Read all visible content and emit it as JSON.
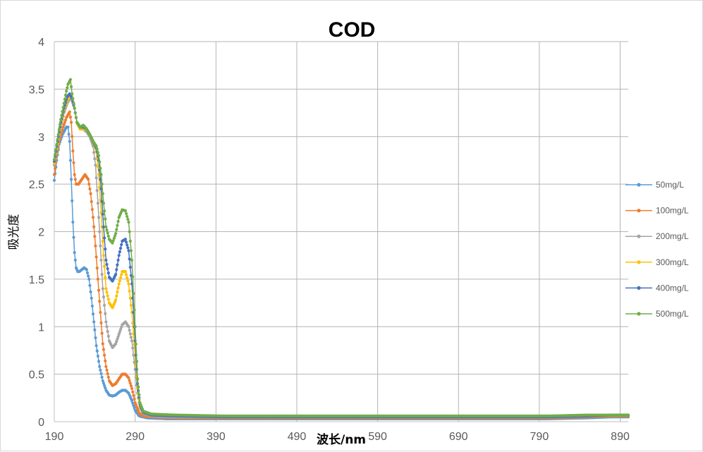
{
  "chart_data": {
    "type": "line",
    "title": "COD",
    "xlabel": "波长/nm",
    "ylabel": "吸光度",
    "xlim": [
      190,
      900
    ],
    "ylim": [
      0,
      4
    ],
    "xticks": [
      190,
      290,
      390,
      490,
      590,
      690,
      790,
      890
    ],
    "yticks": [
      0,
      0.5,
      1,
      1.5,
      2,
      2.5,
      3,
      3.5,
      4
    ],
    "grid": true,
    "legend_position": "right",
    "markers": true,
    "series": [
      {
        "name": "50mg/L",
        "color": "#5b9bd5",
        "points": [
          [
            190,
            2.54
          ],
          [
            193,
            2.75
          ],
          [
            196,
            2.92
          ],
          [
            200,
            3.02
          ],
          [
            205,
            3.1
          ],
          [
            207,
            3.1
          ],
          [
            209,
            2.95
          ],
          [
            211,
            2.55
          ],
          [
            213,
            2.1
          ],
          [
            215,
            1.78
          ],
          [
            217,
            1.62
          ],
          [
            219,
            1.58
          ],
          [
            221,
            1.58
          ],
          [
            224,
            1.6
          ],
          [
            227,
            1.62
          ],
          [
            230,
            1.6
          ],
          [
            233,
            1.5
          ],
          [
            236,
            1.3
          ],
          [
            239,
            1.05
          ],
          [
            242,
            0.8
          ],
          [
            246,
            0.58
          ],
          [
            250,
            0.43
          ],
          [
            254,
            0.33
          ],
          [
            258,
            0.28
          ],
          [
            262,
            0.27
          ],
          [
            266,
            0.28
          ],
          [
            270,
            0.31
          ],
          [
            274,
            0.33
          ],
          [
            278,
            0.33
          ],
          [
            282,
            0.3
          ],
          [
            286,
            0.22
          ],
          [
            290,
            0.12
          ],
          [
            295,
            0.06
          ],
          [
            305,
            0.04
          ],
          [
            330,
            0.03
          ],
          [
            400,
            0.03
          ],
          [
            500,
            0.03
          ],
          [
            600,
            0.03
          ],
          [
            700,
            0.03
          ],
          [
            800,
            0.03
          ],
          [
            850,
            0.04
          ],
          [
            880,
            0.05
          ],
          [
            900,
            0.05
          ]
        ]
      },
      {
        "name": "100mg/L",
        "color": "#ed7d31",
        "points": [
          [
            190,
            2.6
          ],
          [
            193,
            2.8
          ],
          [
            197,
            2.98
          ],
          [
            201,
            3.1
          ],
          [
            205,
            3.2
          ],
          [
            209,
            3.26
          ],
          [
            211,
            3.15
          ],
          [
            213,
            2.85
          ],
          [
            215,
            2.6
          ],
          [
            217,
            2.5
          ],
          [
            220,
            2.5
          ],
          [
            224,
            2.55
          ],
          [
            228,
            2.6
          ],
          [
            232,
            2.55
          ],
          [
            235,
            2.4
          ],
          [
            238,
            2.15
          ],
          [
            241,
            1.85
          ],
          [
            244,
            1.5
          ],
          [
            247,
            1.15
          ],
          [
            250,
            0.82
          ],
          [
            254,
            0.58
          ],
          [
            258,
            0.43
          ],
          [
            262,
            0.38
          ],
          [
            266,
            0.4
          ],
          [
            270,
            0.45
          ],
          [
            274,
            0.5
          ],
          [
            278,
            0.5
          ],
          [
            282,
            0.46
          ],
          [
            286,
            0.35
          ],
          [
            290,
            0.2
          ],
          [
            295,
            0.09
          ],
          [
            300,
            0.06
          ],
          [
            310,
            0.05
          ],
          [
            340,
            0.04
          ],
          [
            400,
            0.04
          ],
          [
            500,
            0.04
          ],
          [
            600,
            0.04
          ],
          [
            700,
            0.04
          ],
          [
            800,
            0.04
          ],
          [
            850,
            0.05
          ],
          [
            880,
            0.06
          ],
          [
            900,
            0.06
          ]
        ]
      },
      {
        "name": "200mg/L",
        "color": "#a5a5a5",
        "points": [
          [
            190,
            2.7
          ],
          [
            194,
            2.9
          ],
          [
            198,
            3.1
          ],
          [
            202,
            3.25
          ],
          [
            206,
            3.35
          ],
          [
            209,
            3.4
          ],
          [
            212,
            3.38
          ],
          [
            215,
            3.3
          ],
          [
            218,
            3.15
          ],
          [
            222,
            3.08
          ],
          [
            226,
            3.08
          ],
          [
            230,
            3.05
          ],
          [
            234,
            3.0
          ],
          [
            238,
            2.9
          ],
          [
            241,
            2.7
          ],
          [
            244,
            2.3
          ],
          [
            247,
            1.85
          ],
          [
            250,
            1.4
          ],
          [
            254,
            1.05
          ],
          [
            258,
            0.85
          ],
          [
            262,
            0.78
          ],
          [
            266,
            0.82
          ],
          [
            270,
            0.92
          ],
          [
            274,
            1.02
          ],
          [
            278,
            1.05
          ],
          [
            282,
            1.0
          ],
          [
            286,
            0.85
          ],
          [
            290,
            0.55
          ],
          [
            293,
            0.3
          ],
          [
            296,
            0.15
          ],
          [
            300,
            0.09
          ],
          [
            310,
            0.06
          ],
          [
            340,
            0.05
          ],
          [
            400,
            0.05
          ],
          [
            500,
            0.05
          ],
          [
            600,
            0.05
          ],
          [
            700,
            0.05
          ],
          [
            800,
            0.05
          ],
          [
            850,
            0.06
          ],
          [
            880,
            0.07
          ],
          [
            900,
            0.07
          ]
        ]
      },
      {
        "name": "300mg/L",
        "color": "#ffc000",
        "points": [
          [
            190,
            2.72
          ],
          [
            194,
            2.92
          ],
          [
            198,
            3.12
          ],
          [
            202,
            3.28
          ],
          [
            206,
            3.38
          ],
          [
            209,
            3.42
          ],
          [
            212,
            3.4
          ],
          [
            215,
            3.3
          ],
          [
            218,
            3.15
          ],
          [
            222,
            3.08
          ],
          [
            226,
            3.08
          ],
          [
            230,
            3.08
          ],
          [
            234,
            3.02
          ],
          [
            238,
            2.95
          ],
          [
            242,
            2.85
          ],
          [
            245,
            2.6
          ],
          [
            248,
            2.2
          ],
          [
            251,
            1.75
          ],
          [
            254,
            1.4
          ],
          [
            258,
            1.25
          ],
          [
            262,
            1.2
          ],
          [
            266,
            1.28
          ],
          [
            270,
            1.45
          ],
          [
            274,
            1.58
          ],
          [
            278,
            1.58
          ],
          [
            282,
            1.45
          ],
          [
            286,
            1.15
          ],
          [
            290,
            0.7
          ],
          [
            293,
            0.35
          ],
          [
            296,
            0.17
          ],
          [
            300,
            0.1
          ],
          [
            310,
            0.07
          ],
          [
            340,
            0.06
          ],
          [
            400,
            0.05
          ],
          [
            500,
            0.05
          ],
          [
            600,
            0.05
          ],
          [
            700,
            0.05
          ],
          [
            800,
            0.05
          ],
          [
            850,
            0.06
          ],
          [
            880,
            0.07
          ],
          [
            900,
            0.07
          ]
        ]
      },
      {
        "name": "400mg/L",
        "color": "#4472c4",
        "points": [
          [
            190,
            2.74
          ],
          [
            194,
            2.95
          ],
          [
            198,
            3.15
          ],
          [
            202,
            3.3
          ],
          [
            206,
            3.42
          ],
          [
            209,
            3.45
          ],
          [
            212,
            3.4
          ],
          [
            215,
            3.3
          ],
          [
            218,
            3.15
          ],
          [
            222,
            3.1
          ],
          [
            226,
            3.1
          ],
          [
            230,
            3.08
          ],
          [
            234,
            3.02
          ],
          [
            238,
            2.95
          ],
          [
            242,
            2.88
          ],
          [
            245,
            2.75
          ],
          [
            248,
            2.45
          ],
          [
            251,
            2.05
          ],
          [
            254,
            1.7
          ],
          [
            258,
            1.52
          ],
          [
            262,
            1.48
          ],
          [
            266,
            1.55
          ],
          [
            270,
            1.75
          ],
          [
            274,
            1.9
          ],
          [
            278,
            1.92
          ],
          [
            282,
            1.8
          ],
          [
            286,
            1.45
          ],
          [
            290,
            0.85
          ],
          [
            293,
            0.4
          ],
          [
            296,
            0.18
          ],
          [
            300,
            0.1
          ],
          [
            310,
            0.07
          ],
          [
            340,
            0.06
          ],
          [
            400,
            0.05
          ],
          [
            500,
            0.05
          ],
          [
            600,
            0.05
          ],
          [
            700,
            0.05
          ],
          [
            800,
            0.05
          ],
          [
            850,
            0.06
          ],
          [
            880,
            0.07
          ],
          [
            900,
            0.07
          ]
        ]
      },
      {
        "name": "500mg/L",
        "color": "#70ad47",
        "points": [
          [
            190,
            2.76
          ],
          [
            194,
            2.97
          ],
          [
            198,
            3.18
          ],
          [
            202,
            3.35
          ],
          [
            205,
            3.48
          ],
          [
            207,
            3.55
          ],
          [
            210,
            3.6
          ],
          [
            212,
            3.45
          ],
          [
            215,
            3.3
          ],
          [
            218,
            3.15
          ],
          [
            222,
            3.1
          ],
          [
            226,
            3.12
          ],
          [
            230,
            3.08
          ],
          [
            234,
            3.02
          ],
          [
            238,
            2.95
          ],
          [
            242,
            2.9
          ],
          [
            245,
            2.8
          ],
          [
            248,
            2.6
          ],
          [
            251,
            2.3
          ],
          [
            254,
            2.05
          ],
          [
            258,
            1.92
          ],
          [
            262,
            1.88
          ],
          [
            266,
            1.98
          ],
          [
            270,
            2.15
          ],
          [
            274,
            2.23
          ],
          [
            278,
            2.22
          ],
          [
            282,
            2.1
          ],
          [
            286,
            1.7
          ],
          [
            290,
            1.0
          ],
          [
            293,
            0.45
          ],
          [
            296,
            0.2
          ],
          [
            300,
            0.11
          ],
          [
            310,
            0.08
          ],
          [
            340,
            0.07
          ],
          [
            400,
            0.06
          ],
          [
            500,
            0.06
          ],
          [
            600,
            0.06
          ],
          [
            700,
            0.06
          ],
          [
            800,
            0.06
          ],
          [
            850,
            0.07
          ],
          [
            880,
            0.07
          ],
          [
            900,
            0.07
          ]
        ]
      }
    ]
  }
}
